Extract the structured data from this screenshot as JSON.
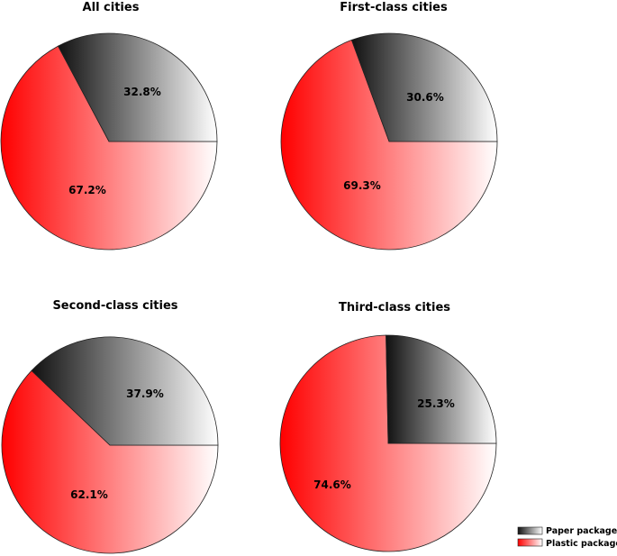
{
  "chart_data": [
    {
      "type": "pie",
      "title": "All cities",
      "slices": [
        {
          "label": "Paper package",
          "value": 32.8,
          "display": "32.8%"
        },
        {
          "label": "Plastic package",
          "value": 67.2,
          "display": "67.2%"
        }
      ]
    },
    {
      "type": "pie",
      "title": "First-class cities",
      "slices": [
        {
          "label": "Paper package",
          "value": 30.6,
          "display": "30.6%"
        },
        {
          "label": "Plastic package",
          "value": 69.3,
          "display": "69.3%"
        }
      ]
    },
    {
      "type": "pie",
      "title": "Second-class cities",
      "slices": [
        {
          "label": "Paper package",
          "value": 37.9,
          "display": "37.9%"
        },
        {
          "label": "Plastic package",
          "value": 62.1,
          "display": "62.1%"
        }
      ]
    },
    {
      "type": "pie",
      "title": "Third-class cities",
      "slices": [
        {
          "label": "Paper package",
          "value": 25.3,
          "display": "25.3%"
        },
        {
          "label": "Plastic package",
          "value": 74.6,
          "display": "74.6%"
        }
      ]
    }
  ],
  "legend": {
    "placement": "bottom-right",
    "items": [
      {
        "label": "Paper package",
        "color_dark": "#111111",
        "color_light": "#ffffff"
      },
      {
        "label": "Plastic package",
        "color_dark": "#ff0000",
        "color_light": "#ffffff"
      }
    ]
  },
  "colors": {
    "paper_dark": "#111111",
    "paper_light": "#ffffff",
    "plastic_dark": "#ff0000",
    "plastic_light": "#ffffff",
    "outline": "#222222"
  }
}
